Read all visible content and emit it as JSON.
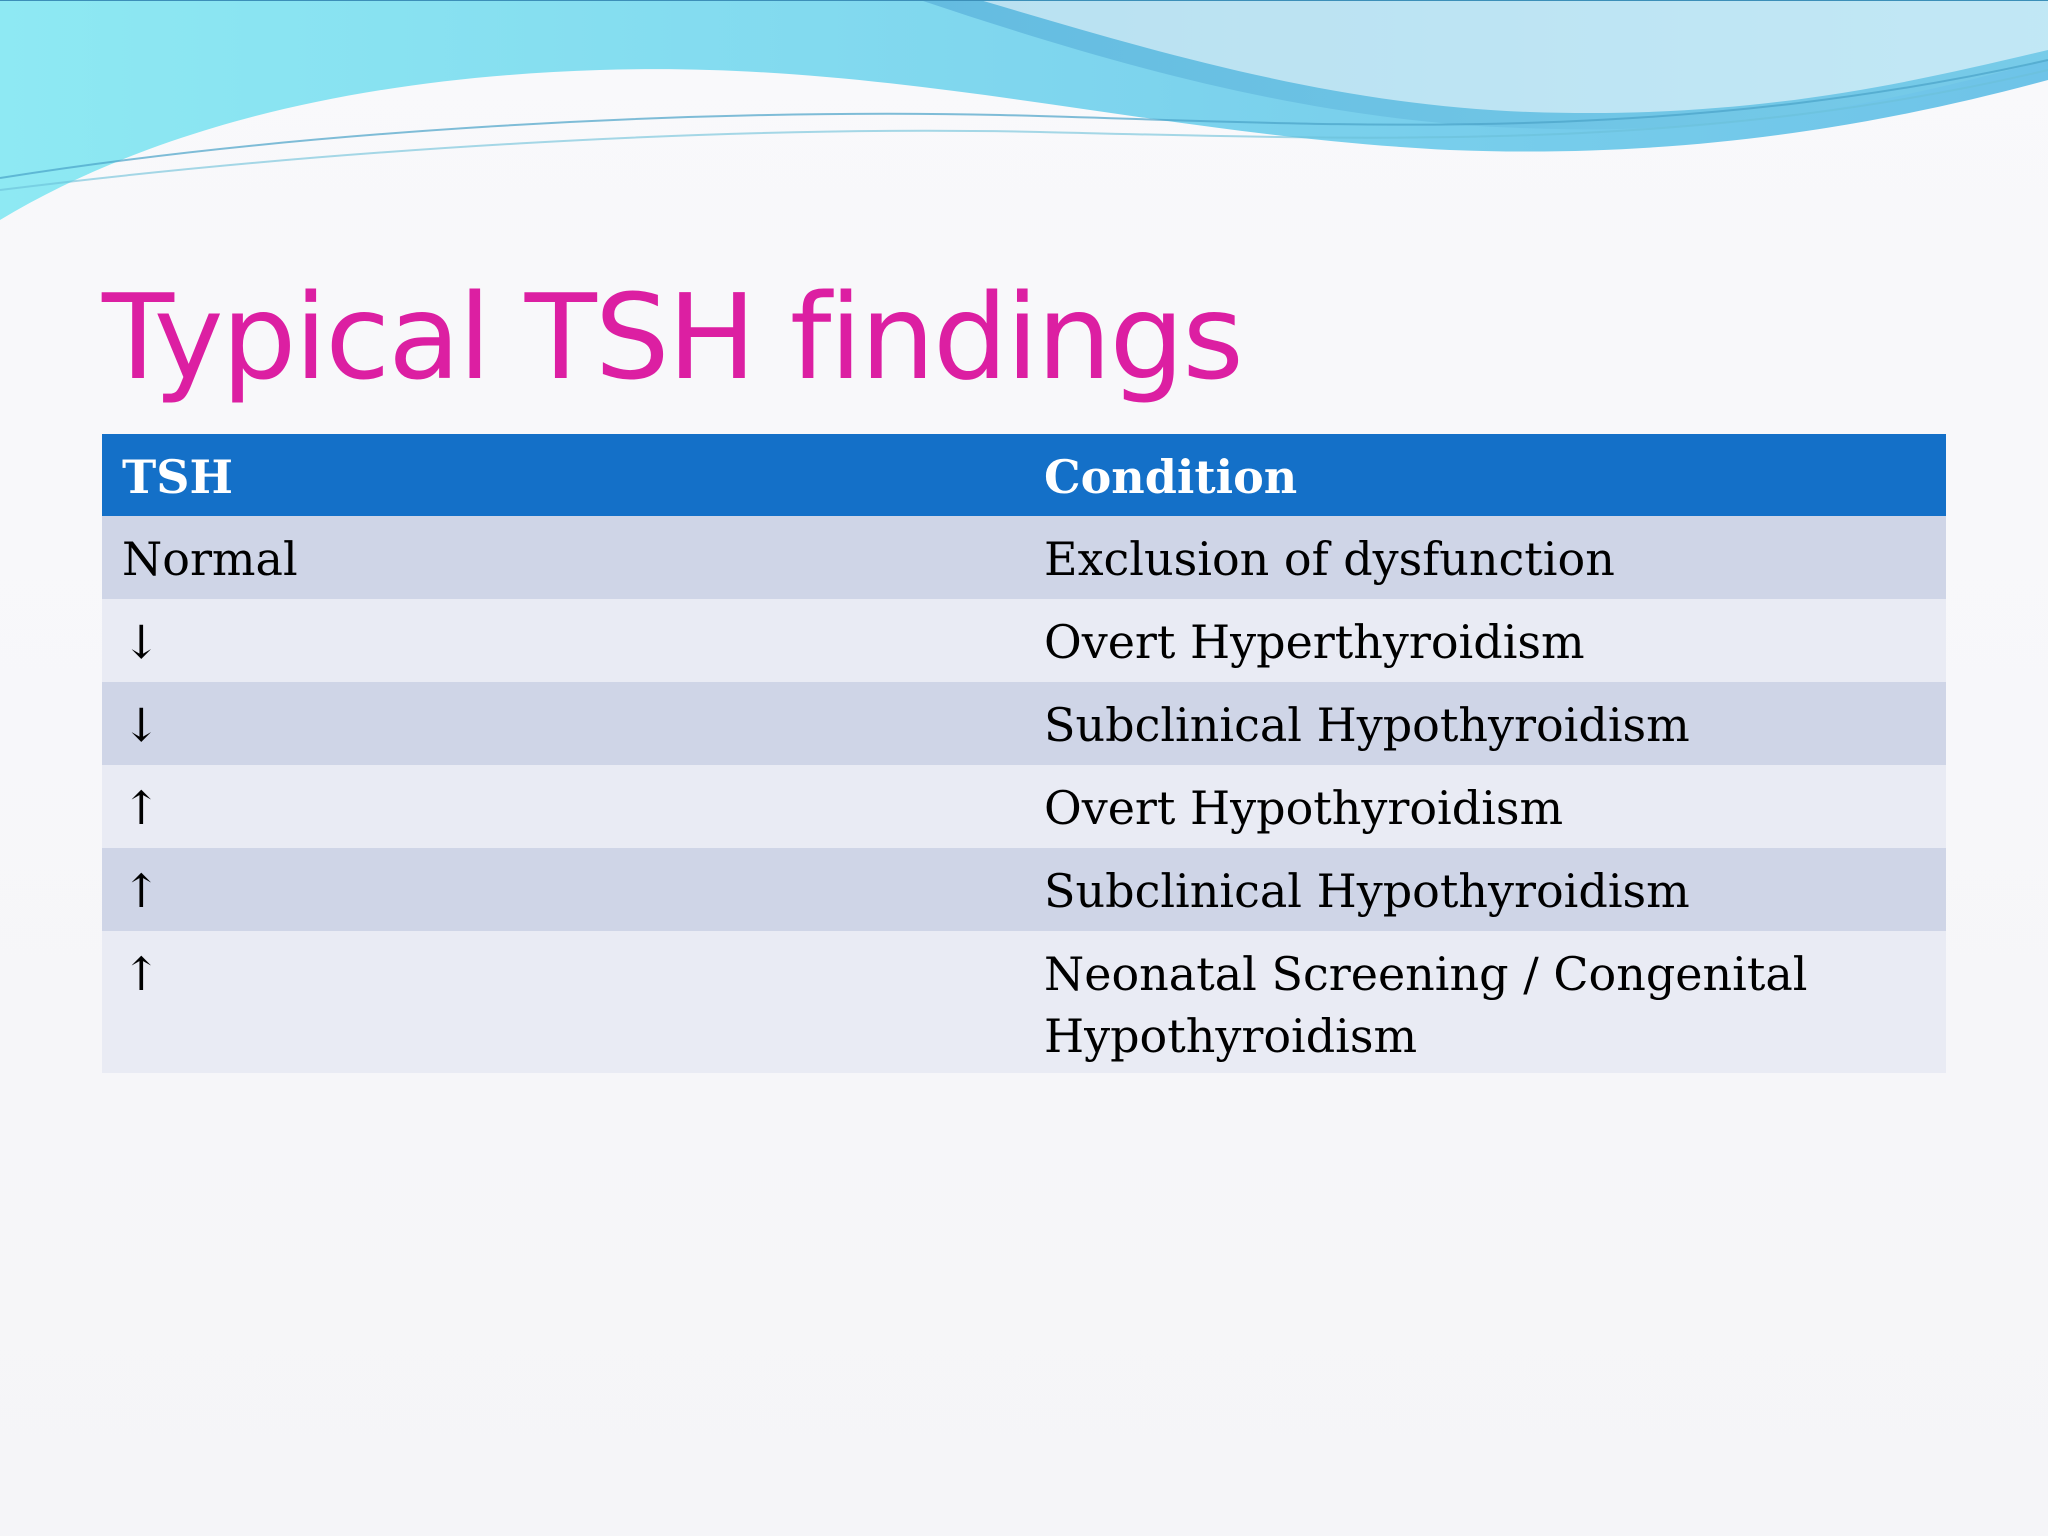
{
  "slide": {
    "title": "Typical TSH findings"
  },
  "table": {
    "headers": [
      "TSH",
      "Condition"
    ],
    "rows": [
      {
        "tsh": "Normal",
        "condition": "Exclusion of dysfunction"
      },
      {
        "tsh": "↓",
        "condition": "Overt Hyperthyroidism"
      },
      {
        "tsh": "↓",
        "condition": "Subclinical Hypothyroidism"
      },
      {
        "tsh": "↑",
        "condition": "Overt Hypothyroidism"
      },
      {
        "tsh": "↑",
        "condition": "Subclinical Hypothyroidism"
      },
      {
        "tsh": "↑",
        "condition": "Neonatal Screening / Congenital Hypothyroidism"
      }
    ]
  },
  "colors": {
    "title": "#dc1fa2",
    "header_background": "#1470c8",
    "row_dark": "#cfd5e7",
    "row_light": "#e9ebf4"
  }
}
